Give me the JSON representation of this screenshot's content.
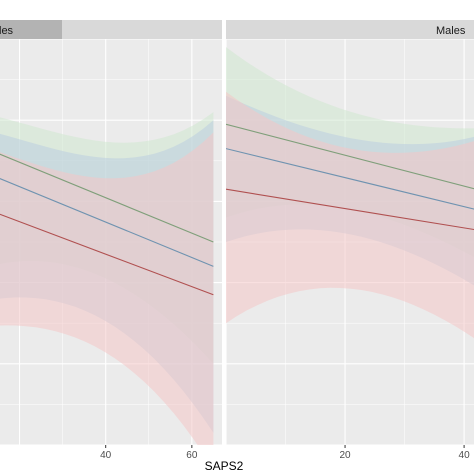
{
  "chart_data": {
    "type": "line",
    "xlabel": "SAPS2",
    "grid": true,
    "panels": [
      {
        "strip_label": "les",
        "xlim": [
          15,
          67
        ],
        "ylim": [
          0,
          100
        ],
        "x_ticks": [
          40,
          60
        ],
        "series": [
          {
            "color": "#7f9f7a",
            "fill": "#cfe8cf",
            "x": [
              10,
              65
            ],
            "y": [
              74,
              50
            ],
            "lower": [
              43,
              20
            ],
            "upper": [
              82,
              82
            ]
          },
          {
            "color": "#6f93b0",
            "fill": "#bccde0",
            "x": [
              10,
              65
            ],
            "y": [
              68,
              44
            ],
            "lower": [
              35,
              3
            ],
            "upper": [
              78,
              80
            ]
          },
          {
            "color": "#b05050",
            "fill": "#f4c6c6",
            "x": [
              10,
              65
            ],
            "y": [
              59,
              37
            ],
            "lower": [
              29,
              -6
            ],
            "upper": [
              74,
              77
            ]
          }
        ]
      },
      {
        "strip_label": "Males",
        "xlim": [
          0,
          42
        ],
        "ylim": [
          0,
          100
        ],
        "x_ticks": [
          20,
          40
        ],
        "series": [
          {
            "color": "#7f9f7a",
            "fill": "#cfe8cf",
            "x": [
              0,
              42
            ],
            "y": [
              79,
              63
            ],
            "lower": [
              56,
              46
            ],
            "upper": [
              98,
              78
            ]
          },
          {
            "color": "#6f93b0",
            "fill": "#bccde0",
            "x": [
              0,
              42
            ],
            "y": [
              73,
              58
            ],
            "lower": [
              50,
              39
            ],
            "upper": [
              86,
              76
            ]
          },
          {
            "color": "#b05050",
            "fill": "#f4c6c6",
            "x": [
              0,
              42
            ],
            "y": [
              63,
              53
            ],
            "lower": [
              30,
              26
            ],
            "upper": [
              87,
              75
            ]
          }
        ]
      }
    ]
  }
}
